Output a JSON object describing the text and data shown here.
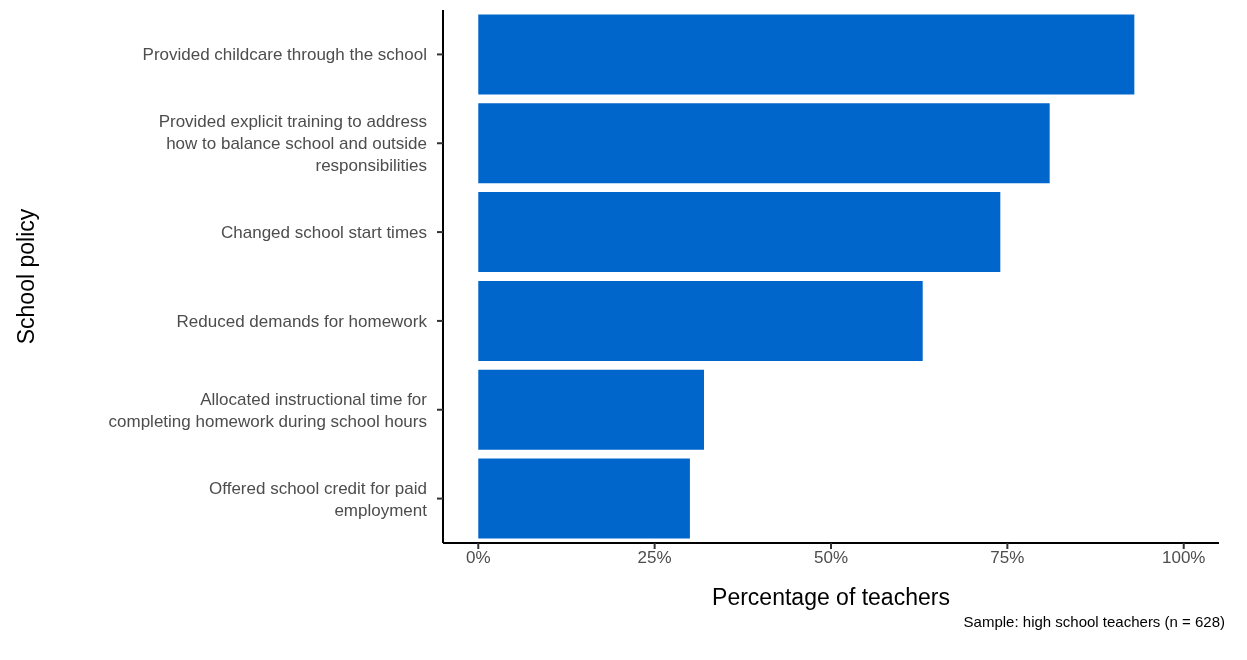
{
  "chart_data": {
    "type": "bar",
    "orientation": "horizontal",
    "xlabel": "Percentage of teachers",
    "ylabel": "School policy",
    "categories": [
      "Provided childcare through the school",
      "Provided explicit training to address how to balance school and outside responsibilities",
      "Changed school start times",
      "Reduced demands for homework",
      "Allocated instructional time for completing homework during school hours",
      "Offered school credit for paid employment"
    ],
    "values": [
      93,
      81,
      74,
      63,
      32,
      30
    ],
    "color": "#0066cc",
    "xlim": [
      -5,
      105
    ],
    "xticks": [
      {
        "value": 0,
        "label": "0%"
      },
      {
        "value": 25,
        "label": "25%"
      },
      {
        "value": 50,
        "label": "50%"
      },
      {
        "value": 75,
        "label": "75%"
      },
      {
        "value": 100,
        "label": "100%"
      }
    ],
    "grid": false,
    "legend": false,
    "annotations": [
      "Sample: high school teachers (n = 628)"
    ]
  }
}
